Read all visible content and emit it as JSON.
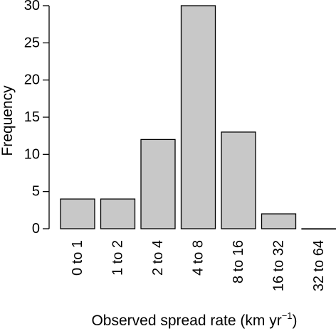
{
  "chart_data": {
    "type": "bar",
    "categories": [
      "0 to 1",
      "1 to 2",
      "2 to 4",
      "4 to 8",
      "8 to 16",
      "16 to 32",
      "32 to 64"
    ],
    "values": [
      4,
      4,
      12,
      30,
      13,
      2,
      0
    ],
    "xlabel": {
      "text": "Observed spread rate (km yr",
      "superscript": "−1",
      "suffix": ")"
    },
    "ylabel": "Frequency",
    "ylim": [
      0,
      30
    ],
    "yticks": [
      "0",
      "5",
      "10",
      "15",
      "20",
      "25",
      "30"
    ],
    "grid": false,
    "legend": "none"
  },
  "colors": {
    "bar_fill": "#c8c8c8",
    "bar_stroke": "#000000",
    "axis": "#000000"
  }
}
